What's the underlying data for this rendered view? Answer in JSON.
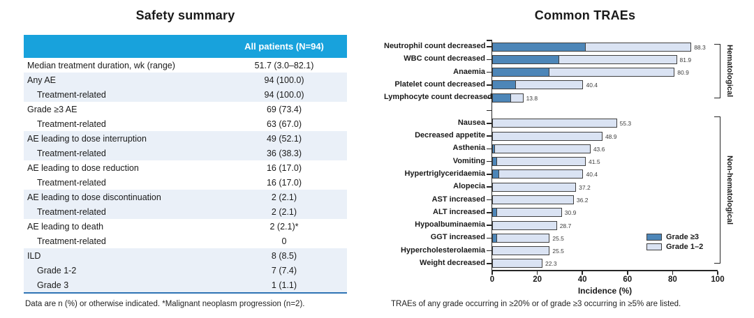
{
  "left_panel": {
    "title": "Safety summary",
    "table": {
      "header": {
        "col1": "",
        "col2": "All patients (N=94)"
      },
      "rows": [
        {
          "label": "Median treatment duration, wk (range)",
          "value": "51.7 (3.0–82.1)",
          "indent": 0,
          "shaded": false
        },
        {
          "label": "Any AE",
          "value": "94 (100.0)",
          "indent": 0,
          "shaded": true
        },
        {
          "label": "Treatment-related",
          "value": "94 (100.0)",
          "indent": 1,
          "shaded": true
        },
        {
          "label": "Grade ≥3 AE",
          "value": "69 (73.4)",
          "indent": 0,
          "shaded": false
        },
        {
          "label": "Treatment-related",
          "value": "63 (67.0)",
          "indent": 1,
          "shaded": false
        },
        {
          "label": "AE leading to dose interruption",
          "value": "49 (52.1)",
          "indent": 0,
          "shaded": true
        },
        {
          "label": "Treatment-related",
          "value": "36 (38.3)",
          "indent": 1,
          "shaded": true
        },
        {
          "label": "AE leading to dose reduction",
          "value": "16 (17.0)",
          "indent": 0,
          "shaded": false
        },
        {
          "label": "Treatment-related",
          "value": "16 (17.0)",
          "indent": 1,
          "shaded": false
        },
        {
          "label": "AE leading to dose discontinuation",
          "value": "2 (2.1)",
          "indent": 0,
          "shaded": true
        },
        {
          "label": "Treatment-related",
          "value": "2 (2.1)",
          "indent": 1,
          "shaded": true
        },
        {
          "label": "AE leading to death",
          "value": "2 (2.1)*",
          "indent": 0,
          "shaded": false
        },
        {
          "label": "Treatment-related",
          "value": "0",
          "indent": 1,
          "shaded": false
        },
        {
          "label": "ILD",
          "value": "8 (8.5)",
          "indent": 0,
          "shaded": true
        },
        {
          "label": "Grade 1-2",
          "value": "7 (7.4)",
          "indent": 1,
          "shaded": true
        },
        {
          "label": "Grade 3",
          "value": "1 (1.1)",
          "indent": 1,
          "shaded": true
        }
      ],
      "footnote": "Data are n (%) or otherwise indicated. *Malignant neoplasm progression (n=2)."
    }
  },
  "right_panel": {
    "title": "Common TRAEs",
    "footnote": "TRAEs of any grade occurring in ≥20% or of grade ≥3 occurring in ≥5% are listed.",
    "chart_data": {
      "type": "bar",
      "orientation": "horizontal",
      "stacked": true,
      "title": "Common TRAEs",
      "xlabel": "Incidence (%)",
      "xlim": [
        0,
        100
      ],
      "xticks": [
        0,
        20,
        40,
        60,
        80,
        100
      ],
      "grid": false,
      "legend_position": "inside-right",
      "series_names": [
        "Grade ≥3",
        "Grade 1–2"
      ],
      "legend": [
        {
          "name": "Grade ≥3",
          "color": "#4D86B8"
        },
        {
          "name": "Grade 1–2",
          "color": "#DAE3F3"
        }
      ],
      "groups": [
        {
          "name": "Hematological",
          "bars": [
            {
              "label": "Neutrophil count decreased",
              "total": 88.3,
              "grade3": 41.5
            },
            {
              "label": "WBC count decreased",
              "total": 81.9,
              "grade3": 29.8
            },
            {
              "label": "Anaemia",
              "total": 80.9,
              "grade3": 25.5
            },
            {
              "label": "Platelet count decreased",
              "total": 40.4,
              "grade3": 10.6
            },
            {
              "label": "Lymphocyte count decreased",
              "total": 13.8,
              "grade3": 8.5
            }
          ]
        },
        {
          "name": "Non-hematological",
          "bars": [
            {
              "label": "Nausea",
              "total": 55.3,
              "grade3": 0
            },
            {
              "label": "Decreased appetite",
              "total": 48.9,
              "grade3": 0
            },
            {
              "label": "Asthenia",
              "total": 43.6,
              "grade3": 1.1
            },
            {
              "label": "Vomiting",
              "total": 41.5,
              "grade3": 2.1
            },
            {
              "label": "Hypertriglyceridaemia",
              "total": 40.4,
              "grade3": 3.2
            },
            {
              "label": "Alopecia",
              "total": 37.2,
              "grade3": 0
            },
            {
              "label": "AST increased",
              "total": 36.2,
              "grade3": 0
            },
            {
              "label": "ALT increased",
              "total": 30.9,
              "grade3": 2.1
            },
            {
              "label": "Hypoalbuminaemia",
              "total": 28.7,
              "grade3": 0
            },
            {
              "label": "GGT increased",
              "total": 25.5,
              "grade3": 2.1
            },
            {
              "label": "Hypercholesterolaemia",
              "total": 25.5,
              "grade3": 0
            },
            {
              "label": "Weight decreased",
              "total": 22.3,
              "grade3": 0
            }
          ]
        }
      ]
    }
  },
  "colors": {
    "header_bg": "#18A2DC",
    "header_text": "#FFFFFF",
    "row_shade": "#EAF0F8",
    "table_rule": "#2E74B5",
    "grade3_fill": "#4D86B8",
    "grade12_fill": "#DAE3F3",
    "bar_border": "#3F3F3F",
    "axis": "#262626"
  }
}
